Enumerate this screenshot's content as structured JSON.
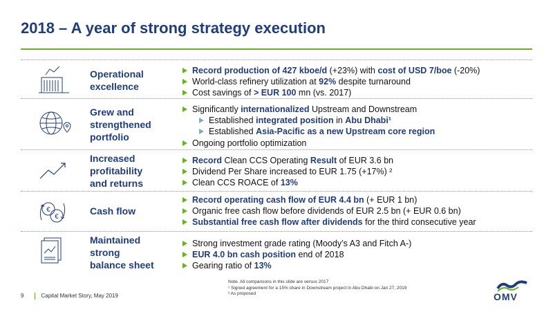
{
  "slide": {
    "title": "2018 – A year of strong strategy execution"
  },
  "sections": [
    {
      "icon": "factory-chart-icon",
      "category": [
        "Operational",
        "excellence"
      ],
      "bullets": [
        {
          "sub": false,
          "parts": [
            {
              "t": "Record production of 427 kboe/d",
              "s": "hl"
            },
            {
              "t": " (+23%) with ",
              "s": ""
            },
            {
              "t": "cost of USD 7/boe",
              "s": "hl"
            },
            {
              "t": " (-20%)",
              "s": ""
            }
          ]
        },
        {
          "sub": false,
          "parts": [
            {
              "t": "World-class refinery utilization at ",
              "s": ""
            },
            {
              "t": "92%",
              "s": "hl"
            },
            {
              "t": " despite turnaround",
              "s": ""
            }
          ]
        },
        {
          "sub": false,
          "parts": [
            {
              "t": "Cost savings of ",
              "s": ""
            },
            {
              "t": "> EUR 100",
              "s": "hl"
            },
            {
              "t": " mn (vs. 2017)",
              "s": ""
            }
          ]
        }
      ]
    },
    {
      "icon": "globe-location-icon",
      "category": [
        "Grew and",
        "strengthened",
        "portfolio"
      ],
      "bullets": [
        {
          "sub": false,
          "parts": [
            {
              "t": "Significantly ",
              "s": ""
            },
            {
              "t": "internationalized",
              "s": "hl"
            },
            {
              "t": " Upstream and Downstream",
              "s": ""
            }
          ]
        },
        {
          "sub": true,
          "parts": [
            {
              "t": "Established ",
              "s": ""
            },
            {
              "t": "integrated position",
              "s": "hl"
            },
            {
              "t": " in ",
              "s": ""
            },
            {
              "t": "Abu Dhabi¹",
              "s": "hl"
            }
          ]
        },
        {
          "sub": true,
          "parts": [
            {
              "t": "Established ",
              "s": ""
            },
            {
              "t": "Asia-Pacific as a new Upstream core region",
              "s": "hl"
            }
          ]
        },
        {
          "sub": false,
          "parts": [
            {
              "t": "Ongoing portfolio optimization",
              "s": ""
            }
          ]
        }
      ]
    },
    {
      "icon": "trend-up-icon",
      "category": [
        "Increased",
        "profitability",
        "and returns"
      ],
      "bullets": [
        {
          "sub": false,
          "parts": [
            {
              "t": "Record",
              "s": "hl"
            },
            {
              "t": " Clean CCS Operating ",
              "s": ""
            },
            {
              "t": "Result",
              "s": "hl"
            },
            {
              "t": " of EUR 3.6 bn",
              "s": ""
            }
          ]
        },
        {
          "sub": false,
          "parts": [
            {
              "t": "Dividend Per Share increased to EUR 1.75 (+17%) ²",
              "s": ""
            }
          ]
        },
        {
          "sub": false,
          "parts": [
            {
              "t": "Clean CCS ROACE of ",
              "s": ""
            },
            {
              "t": "13%",
              "s": "hl"
            }
          ]
        }
      ]
    },
    {
      "icon": "euro-cycle-icon",
      "category": [
        "Cash flow"
      ],
      "bullets": [
        {
          "sub": false,
          "parts": [
            {
              "t": "Record operating cash flow of EUR 4.4 bn",
              "s": "hl"
            },
            {
              "t": " (+ EUR 1 bn)",
              "s": ""
            }
          ]
        },
        {
          "sub": false,
          "parts": [
            {
              "t": "Organic free cash flow before dividends of EUR 2.5 bn (+ EUR 0.6 bn)",
              "s": ""
            }
          ]
        },
        {
          "sub": false,
          "parts": [
            {
              "t": "Substantial free cash flow after dividends",
              "s": "hl"
            },
            {
              "t": " for the third consecutive year",
              "s": ""
            }
          ]
        }
      ]
    },
    {
      "icon": "report-documents-icon",
      "category": [
        "Maintained",
        "strong",
        "balance sheet"
      ],
      "bullets": [
        {
          "sub": false,
          "parts": [
            {
              "t": "Strong investment grade rating (Moody’s A3 and Fitch A-)",
              "s": ""
            }
          ]
        },
        {
          "sub": false,
          "parts": [
            {
              "t": "EUR 4.0 bn cash position",
              "s": "hl"
            },
            {
              "t": " end of 2018",
              "s": ""
            }
          ]
        },
        {
          "sub": false,
          "parts": [
            {
              "t": "Gearing ratio of ",
              "s": ""
            },
            {
              "t": "13%",
              "s": "hl"
            }
          ]
        }
      ]
    }
  ],
  "notes": [
    "Note. All comparisons in this slide are versus 2017",
    "¹ Signed agreement for a 15% share in Downstream project in Abu Dhabi on Jan 27, 2019",
    "² As proposed"
  ],
  "footer": {
    "page": "9",
    "text": "Capital Market Story, May 2019"
  },
  "brand": {
    "logo_text": "OMV",
    "primary": "#1f3d7a",
    "accent": "#6ab023"
  }
}
